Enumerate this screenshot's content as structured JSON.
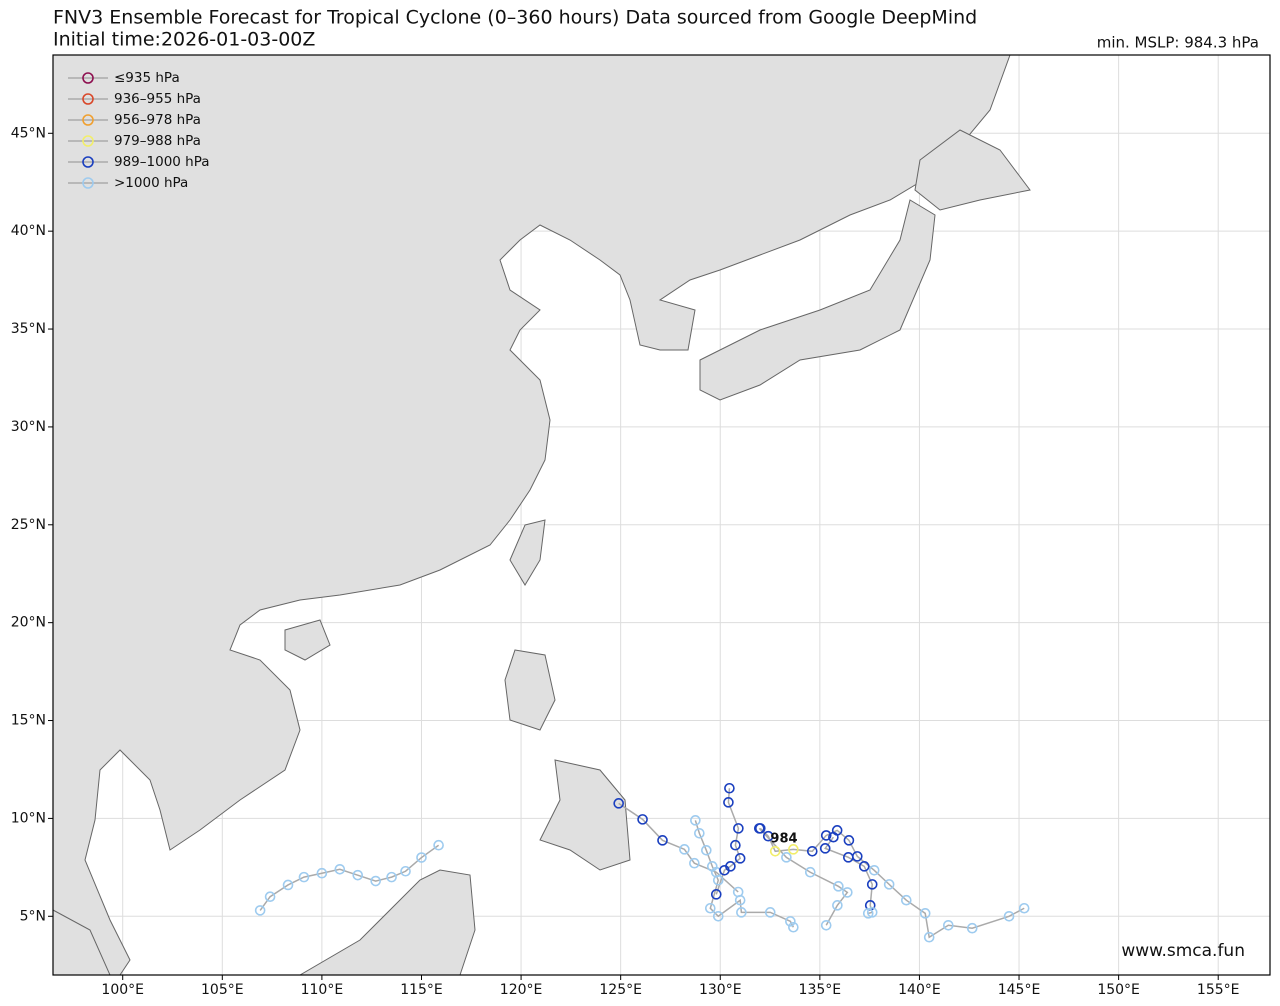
{
  "header": {
    "title": "FNV3 Ensemble Forecast for Tropical Cyclone (0–360 hours) Data sourced from Google DeepMind",
    "subtitle": "Initial time:2026-01-03-00Z",
    "min_mslp": "min. MSLP: 984.3 hPa"
  },
  "map": {
    "xlim": [
      96.5,
      157.6
    ],
    "ylim": [
      2.0,
      49.0
    ],
    "grid": true,
    "xticks": [
      {
        "value": 100,
        "label": "100°E"
      },
      {
        "value": 105,
        "label": "105°E"
      },
      {
        "value": 110,
        "label": "110°E"
      },
      {
        "value": 115,
        "label": "115°E"
      },
      {
        "value": 120,
        "label": "120°E"
      },
      {
        "value": 125,
        "label": "125°E"
      },
      {
        "value": 130,
        "label": "130°E"
      },
      {
        "value": 135,
        "label": "135°E"
      },
      {
        "value": 140,
        "label": "140°E"
      },
      {
        "value": 145,
        "label": "145°E"
      },
      {
        "value": 150,
        "label": "150°E"
      },
      {
        "value": 155,
        "label": "155°E"
      }
    ],
    "yticks": [
      {
        "value": 5,
        "label": "5°N"
      },
      {
        "value": 10,
        "label": "10°N"
      },
      {
        "value": 15,
        "label": "15°N"
      },
      {
        "value": 20,
        "label": "20°N"
      },
      {
        "value": 25,
        "label": "25°N"
      },
      {
        "value": 30,
        "label": "30°N"
      },
      {
        "value": 35,
        "label": "35°N"
      },
      {
        "value": 40,
        "label": "40°N"
      },
      {
        "value": 45,
        "label": "45°N"
      }
    ]
  },
  "legend": [
    {
      "label": "≤935 hPa",
      "color": "#8e1050"
    },
    {
      "label": "936–955 hPa",
      "color": "#d9482a"
    },
    {
      "label": "956–978 hPa",
      "color": "#f0a030"
    },
    {
      "label": "979–988 hPa",
      "color": "#f2ee6a"
    },
    {
      "label": "989–1000 hPa",
      "color": "#1a3fbf"
    },
    {
      "label": ">1000 hPa",
      "color": "#9ecbef"
    }
  ],
  "tracks": [
    {
      "lon": [
        115.86,
        115.0,
        114.2,
        113.5,
        112.7,
        111.8,
        110.9,
        110.0,
        109.1,
        108.3,
        107.4,
        106.9
      ],
      "lat": [
        8.63,
        8.0,
        7.3,
        7.0,
        6.8,
        7.1,
        7.4,
        7.2,
        7.0,
        6.6,
        6.0,
        5.3
      ],
      "colors": [
        "#9ecbef",
        "#9ecbef",
        "#9ecbef",
        "#9ecbef",
        "#9ecbef",
        "#9ecbef",
        "#9ecbef",
        "#9ecbef",
        "#9ecbef",
        "#9ecbef",
        "#9ecbef",
        "#9ecbef"
      ]
    },
    {
      "lon": [
        124.9,
        126.1,
        127.1,
        128.2,
        128.7,
        129.8,
        130.9
      ],
      "lat": [
        10.77,
        9.95,
        8.88,
        8.42,
        7.71,
        7.25,
        6.24
      ],
      "colors": [
        "#1a3fbf",
        "#1a3fbf",
        "#1a3fbf",
        "#9ecbef",
        "#9ecbef",
        "#9ecbef",
        "#9ecbef"
      ]
    },
    {
      "lon": [
        145.26,
        144.5,
        142.65,
        141.45,
        140.49,
        140.29,
        139.34,
        138.48,
        137.73,
        136.88,
        136.46,
        135.87,
        135.32,
        134.62,
        133.67,
        132.76,
        132.41,
        132.01
      ],
      "lat": [
        5.41,
        5.0,
        4.39,
        4.54,
        3.93,
        5.15,
        5.82,
        6.63,
        7.35,
        8.06,
        8.88,
        9.39,
        9.13,
        8.32,
        8.42,
        8.32,
        9.09,
        9.49
      ],
      "colors": [
        "#9ecbef",
        "#9ecbef",
        "#9ecbef",
        "#9ecbef",
        "#9ecbef",
        "#9ecbef",
        "#9ecbef",
        "#9ecbef",
        "#9ecbef",
        "#1a3fbf",
        "#1a3fbf",
        "#1a3fbf",
        "#1a3fbf",
        "#1a3fbf",
        "#f2ee6a",
        "#f2ee6a",
        "#1a3fbf",
        "#1a3fbf"
      ]
    },
    {
      "lon": [
        130.46,
        130.41,
        130.91,
        130.76,
        131.0,
        130.51,
        130.21,
        129.8
      ],
      "lat": [
        11.54,
        10.82,
        9.49,
        8.63,
        7.96,
        7.55,
        7.35,
        6.12
      ],
      "colors": [
        "#1a3fbf",
        "#1a3fbf",
        "#1a3fbf",
        "#1a3fbf",
        "#1a3fbf",
        "#1a3fbf",
        "#1a3fbf",
        "#1a3fbf"
      ]
    },
    {
      "lon": [
        128.75,
        128.95,
        129.3,
        129.6,
        129.9,
        129.5,
        129.9,
        131.0,
        131.06,
        132.51,
        133.52,
        133.67
      ],
      "lat": [
        9.9,
        9.24,
        8.37,
        7.55,
        6.84,
        5.41,
        5.0,
        5.82,
        5.2,
        5.2,
        4.74,
        4.44
      ],
      "colors": [
        "#9ecbef",
        "#9ecbef",
        "#9ecbef",
        "#9ecbef",
        "#9ecbef",
        "#9ecbef",
        "#9ecbef",
        "#9ecbef",
        "#9ecbef",
        "#9ecbef",
        "#9ecbef",
        "#9ecbef"
      ]
    },
    {
      "lon": [
        135.68,
        135.27,
        136.43,
        137.23,
        137.63,
        137.53,
        137.63,
        137.43
      ],
      "lat": [
        9.04,
        8.47,
        8.01,
        7.55,
        6.63,
        5.56,
        5.2,
        5.15
      ],
      "colors": [
        "#1a3fbf",
        "#1a3fbf",
        "#1a3fbf",
        "#1a3fbf",
        "#1a3fbf",
        "#1a3fbf",
        "#9ecbef",
        "#9ecbef"
      ]
    },
    {
      "lon": [
        131.96,
        133.32,
        134.52,
        135.93,
        136.38,
        135.88,
        135.32
      ],
      "lat": [
        9.49,
        8.01,
        7.25,
        6.53,
        6.22,
        5.56,
        4.54
      ],
      "colors": [
        "#1a3fbf",
        "#9ecbef",
        "#9ecbef",
        "#9ecbef",
        "#9ecbef",
        "#9ecbef",
        "#9ecbef"
      ]
    }
  ],
  "annotation": {
    "text": "984",
    "lon": 133.2,
    "lat": 8.96
  },
  "watermark": "www.smca.fun"
}
